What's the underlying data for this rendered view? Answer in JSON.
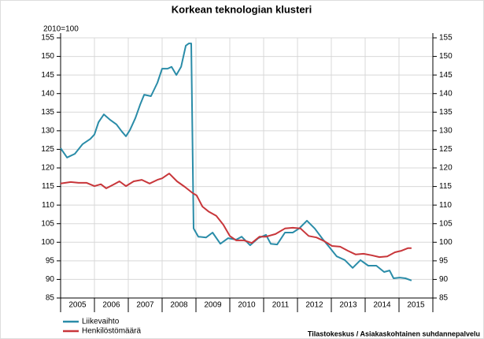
{
  "chart_data": {
    "type": "line",
    "title": "Korkean teknologian klusteri",
    "ylabel": "2010=100",
    "source": "Tilastokeskus / Asiakaskohtainen suhdannepalvelu",
    "xlim": [
      2005,
      2016
    ],
    "xticks": [
      2005,
      2006,
      2007,
      2008,
      2009,
      2010,
      2011,
      2012,
      2013,
      2014,
      2015
    ],
    "ylim": [
      85,
      155
    ],
    "yticks": [
      85,
      90,
      95,
      100,
      105,
      110,
      115,
      120,
      125,
      130,
      135,
      140,
      145,
      150,
      155
    ],
    "grid": true,
    "legend": "bottom-left",
    "series": [
      {
        "name": "Liikevaihto",
        "color": "#2a8ca8",
        "x": [
          2005.0,
          2005.19,
          2005.42,
          2005.65,
          2005.88,
          2006.0,
          2006.12,
          2006.28,
          2006.47,
          2006.65,
          2006.81,
          2006.93,
          2007.05,
          2007.21,
          2007.35,
          2007.47,
          2007.67,
          2007.86,
          2008.0,
          2008.16,
          2008.28,
          2008.42,
          2008.56,
          2008.7,
          2008.79,
          2008.86,
          2008.93,
          2009.07,
          2009.3,
          2009.49,
          2009.72,
          2009.95,
          2010.19,
          2010.35,
          2010.6,
          2010.84,
          2011.07,
          2011.21,
          2011.4,
          2011.63,
          2011.86,
          2012.05,
          2012.28,
          2012.51,
          2012.74,
          2012.93,
          2013.16,
          2013.4,
          2013.63,
          2013.86,
          2014.09,
          2014.33,
          2014.56,
          2014.72,
          2014.84,
          2015.02,
          2015.19,
          2015.37
        ],
        "values": [
          125.3,
          122.8,
          123.8,
          126.4,
          127.8,
          129,
          132.3,
          134.4,
          132.9,
          131.7,
          129.8,
          128.5,
          130.2,
          133.4,
          137,
          139.7,
          139.3,
          142.9,
          146.7,
          146.7,
          147.2,
          145,
          147.2,
          152.9,
          153.5,
          153.5,
          103.7,
          101.5,
          101.3,
          102.6,
          99.6,
          101.1,
          100.7,
          101.5,
          99.2,
          101.1,
          102,
          99.6,
          99.4,
          102.6,
          102.6,
          103.7,
          105.8,
          103.7,
          100.9,
          98.8,
          96.2,
          95.2,
          93.1,
          95.2,
          93.7,
          93.7,
          92,
          92.4,
          90.3,
          90.5,
          90.3,
          89.7
        ]
      },
      {
        "name": "Henkilöstömäärä",
        "color": "#c8363a",
        "x": [
          2005.0,
          2005.3,
          2005.53,
          2005.77,
          2006.0,
          2006.19,
          2006.35,
          2006.58,
          2006.74,
          2006.93,
          2007.16,
          2007.4,
          2007.63,
          2007.86,
          2008.0,
          2008.21,
          2008.44,
          2008.67,
          2008.91,
          2009.02,
          2009.19,
          2009.37,
          2009.6,
          2009.81,
          2010.0,
          2010.19,
          2010.42,
          2010.65,
          2010.88,
          2011.07,
          2011.35,
          2011.63,
          2011.86,
          2012.09,
          2012.33,
          2012.56,
          2012.79,
          2013.02,
          2013.26,
          2013.49,
          2013.72,
          2013.95,
          2014.19,
          2014.42,
          2014.65,
          2014.88,
          2015.07,
          2015.26,
          2015.37
        ],
        "values": [
          115.8,
          116.2,
          116,
          116,
          115.1,
          115.6,
          114.5,
          115.6,
          116.4,
          115.1,
          116.4,
          116.8,
          115.8,
          116.8,
          117.2,
          118.5,
          116.4,
          114.9,
          113.2,
          112.6,
          109.6,
          108.3,
          107.1,
          104.7,
          101.7,
          100.5,
          100.5,
          99.8,
          101.5,
          101.5,
          102.2,
          103.7,
          103.9,
          103.7,
          101.7,
          101.3,
          100.3,
          99,
          98.8,
          97.7,
          96.7,
          96.9,
          96.5,
          96,
          96.2,
          97.3,
          97.7,
          98.4,
          98.4
        ]
      }
    ]
  }
}
